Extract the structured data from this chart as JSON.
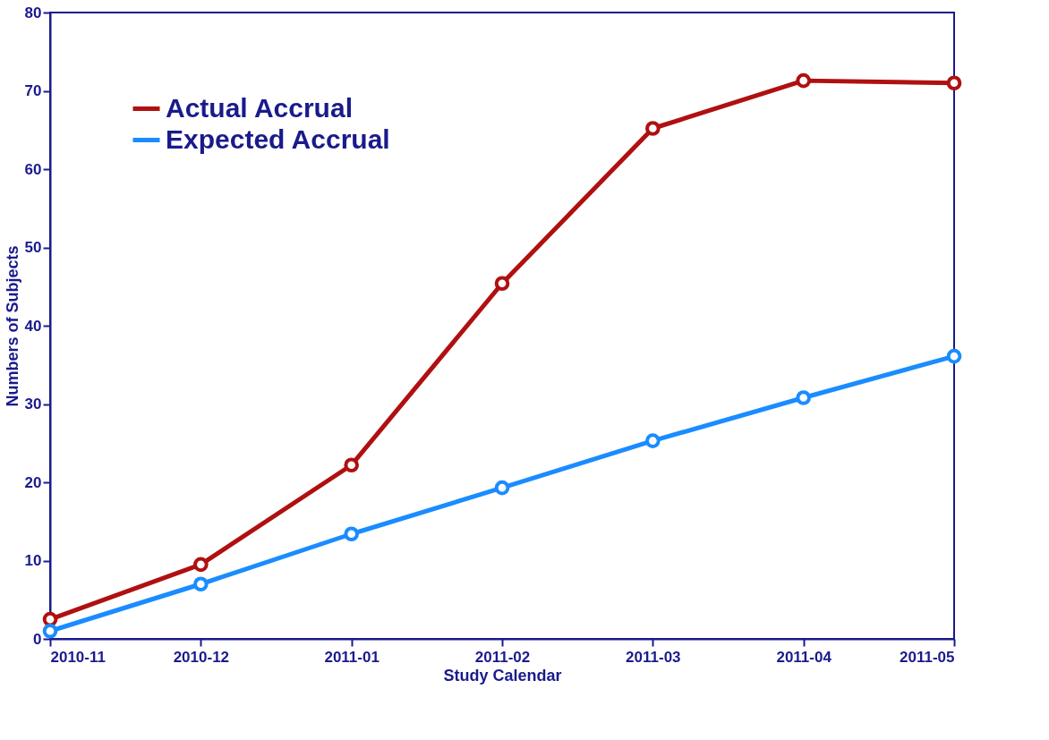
{
  "chart_data": {
    "type": "line",
    "xlabel": "Study Calendar",
    "ylabel": "Numbers of Subjects",
    "categories": [
      "2010-11",
      "2010-12",
      "2011-01",
      "2011-02",
      "2011-03",
      "2011-04",
      "2011-05"
    ],
    "series": [
      {
        "name": "Actual Accrual",
        "color": "#b01010",
        "values": [
          2.5,
          9.5,
          22.2,
          45.4,
          65.2,
          71.3,
          71.0
        ]
      },
      {
        "name": "Expected Accrual",
        "color": "#1a8cff",
        "values": [
          1.0,
          7.0,
          13.4,
          19.3,
          25.3,
          30.8,
          36.1
        ]
      }
    ],
    "ylim": [
      0,
      80
    ],
    "yticks": [
      0,
      10,
      20,
      30,
      40,
      50,
      60,
      70,
      80
    ],
    "grid": false,
    "legend": "top left",
    "marker": "circle",
    "line_style": "solid"
  }
}
